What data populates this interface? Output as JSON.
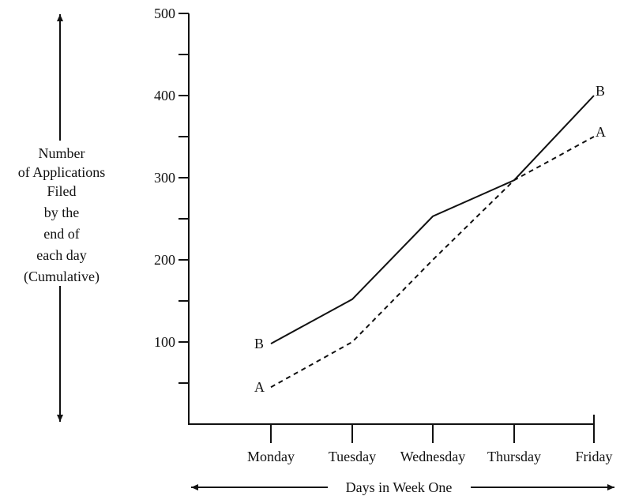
{
  "chart_data": {
    "type": "line",
    "title": "",
    "xlabel": "Days in Week One",
    "ylabel_lines": [
      "Number",
      "of Applications",
      "Filed",
      "by the",
      "end of",
      "each day",
      "(Cumulative)"
    ],
    "categories": [
      "Monday",
      "Tuesday",
      "Wednesday",
      "Thursday",
      "Friday"
    ],
    "ylim": [
      0,
      500
    ],
    "ytick_labels": [
      "100",
      "200",
      "300",
      "400",
      "500"
    ],
    "ytick_labels_values": [
      100,
      200,
      300,
      400,
      500
    ],
    "yminor_ticks": [
      50,
      150,
      250,
      350,
      450
    ],
    "grid": false,
    "series": [
      {
        "name": "A",
        "values": [
          45,
          100,
          200,
          297,
          350
        ],
        "style": "dashed",
        "color": "#111111"
      },
      {
        "name": "B",
        "values": [
          98,
          152,
          253,
          297,
          400
        ],
        "style": "solid",
        "color": "#111111"
      }
    ]
  }
}
